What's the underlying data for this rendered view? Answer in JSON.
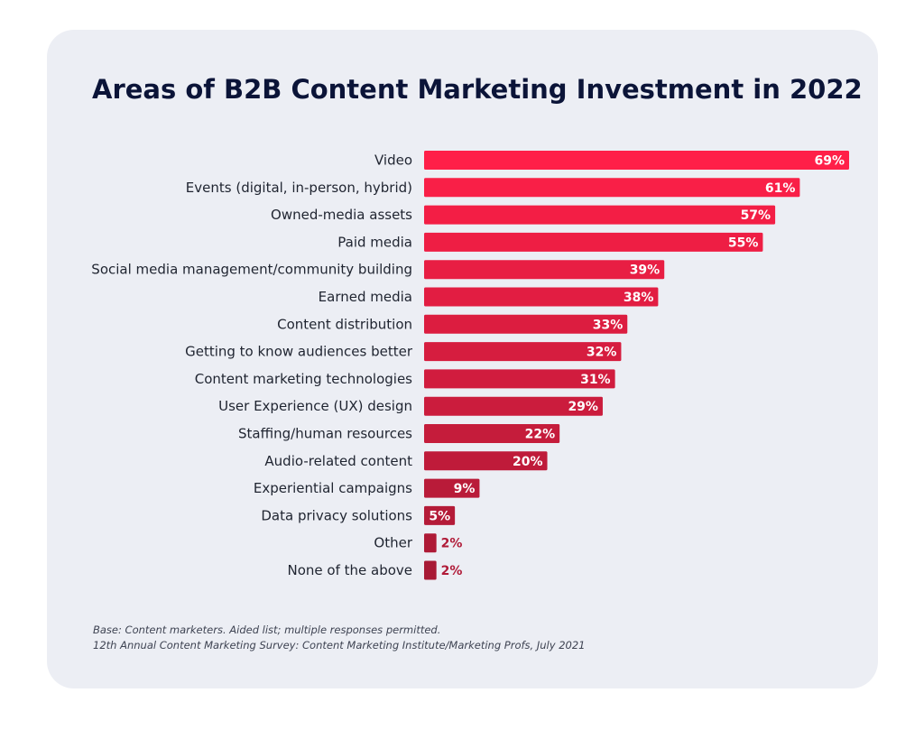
{
  "chart_data": {
    "type": "bar",
    "orientation": "horizontal",
    "title": "Areas of B2B Content Marketing Investment in 2022",
    "categories": [
      "Video",
      "Events (digital, in-person, hybrid)",
      "Owned-media assets",
      "Paid media",
      "Social media management/community building",
      "Earned media",
      "Content distribution",
      "Getting to know audiences better",
      "Content marketing technologies",
      "User Experience (UX) design",
      "Staffing/human resources",
      "Audio-related content",
      "Experiential campaigns",
      "Data privacy solutions",
      "Other",
      "None of the above"
    ],
    "values": [
      69,
      61,
      57,
      55,
      39,
      38,
      33,
      32,
      31,
      29,
      22,
      20,
      9,
      5,
      2,
      2
    ],
    "value_labels": [
      "69%",
      "61%",
      "57%",
      "55%",
      "39%",
      "38%",
      "33%",
      "32%",
      "31%",
      "29%",
      "22%",
      "20%",
      "9%",
      "5%",
      "2%",
      "2%"
    ],
    "unit": "%",
    "xlim": [
      0,
      69
    ],
    "grid": false,
    "legend": "none",
    "bar_color_top": "#ff1f48",
    "bar_color_bottom": "#a81a35",
    "outside_label_color": "#b01b38",
    "inside_label_color": "#ffffff"
  },
  "footnotes": {
    "base": "Base: Content marketers. Aided list; multiple responses permitted.",
    "source": "12th Annual Content Marketing Survey: Content Marketing Institute/Marketing Profs, July 2021"
  }
}
